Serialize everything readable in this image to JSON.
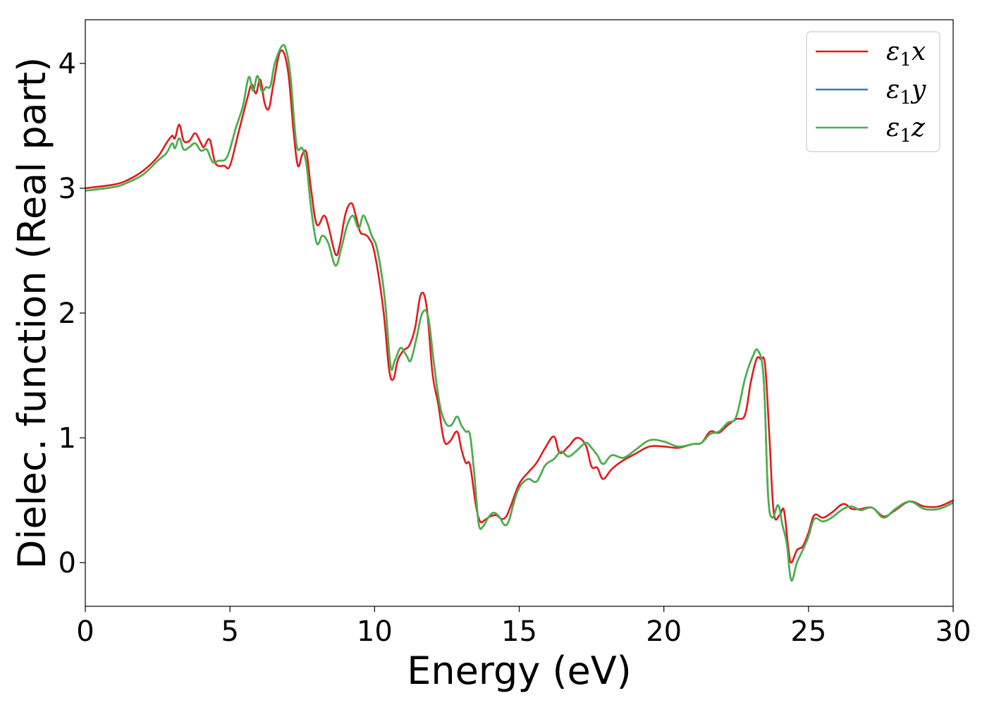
{
  "chart_data": {
    "type": "line",
    "xlabel": "Energy (eV)",
    "ylabel": "Dielec. function (Real part)",
    "xlim": [
      0,
      30
    ],
    "ylim": [
      -0.35,
      4.35
    ],
    "xticks": [
      0,
      5,
      10,
      15,
      20,
      25,
      30
    ],
    "xtick_labels": [
      "0",
      "5",
      "10",
      "15",
      "20",
      "25",
      "30"
    ],
    "yticks": [
      0,
      1,
      2,
      3,
      4
    ],
    "ytick_labels": [
      "0",
      "1",
      "2",
      "3",
      "4"
    ],
    "grid": false,
    "legend_position": "top-right",
    "series": [
      {
        "name": "ε1x",
        "legend_base": "ε",
        "legend_sub": "1",
        "legend_var": "x",
        "color": "#e41a1c",
        "x": [
          0,
          1,
          1.5,
          2,
          2.5,
          2.8,
          3.0,
          3.1,
          3.25,
          3.4,
          3.6,
          3.8,
          4.0,
          4.1,
          4.3,
          4.5,
          4.8,
          5.0,
          5.3,
          5.6,
          5.75,
          5.9,
          6.05,
          6.2,
          6.35,
          6.5,
          6.75,
          7.0,
          7.2,
          7.35,
          7.5,
          7.65,
          7.8,
          8.0,
          8.25,
          8.4,
          8.65,
          8.8,
          9.0,
          9.2,
          9.35,
          9.5,
          9.65,
          9.8,
          10.0,
          10.3,
          10.5,
          10.65,
          10.8,
          11.0,
          11.2,
          11.4,
          11.6,
          11.8,
          12.0,
          12.2,
          12.4,
          12.6,
          12.85,
          13.0,
          13.15,
          13.3,
          13.5,
          13.65,
          13.8,
          14.0,
          14.2,
          14.4,
          14.55,
          14.7,
          15.0,
          15.3,
          15.6,
          15.9,
          16.2,
          16.4,
          16.7,
          17.0,
          17.3,
          17.5,
          17.7,
          17.9,
          18.2,
          18.6,
          19.0,
          19.5,
          20.0,
          20.5,
          21.0,
          21.3,
          21.6,
          21.9,
          22.2,
          22.5,
          22.8,
          23.0,
          23.2,
          23.35,
          23.5,
          23.65,
          23.8,
          24.0,
          24.15,
          24.3,
          24.4,
          24.6,
          24.8,
          25.0,
          25.2,
          25.5,
          25.8,
          26.2,
          26.5,
          26.8,
          27.2,
          27.6,
          28.0,
          28.5,
          29.0,
          29.5,
          30.0
        ],
        "values": [
          3.0,
          3.03,
          3.07,
          3.14,
          3.25,
          3.36,
          3.42,
          3.4,
          3.51,
          3.38,
          3.38,
          3.44,
          3.36,
          3.33,
          3.39,
          3.2,
          3.18,
          3.18,
          3.45,
          3.72,
          3.83,
          3.76,
          3.87,
          3.68,
          3.64,
          3.83,
          4.1,
          3.95,
          3.45,
          3.18,
          3.27,
          3.28,
          3.0,
          2.71,
          2.78,
          2.7,
          2.47,
          2.55,
          2.8,
          2.88,
          2.78,
          2.65,
          2.63,
          2.6,
          2.48,
          2.03,
          1.55,
          1.47,
          1.62,
          1.7,
          1.74,
          1.88,
          2.15,
          2.05,
          1.52,
          1.27,
          0.98,
          0.97,
          1.05,
          0.91,
          0.8,
          0.78,
          0.46,
          0.33,
          0.34,
          0.37,
          0.38,
          0.35,
          0.37,
          0.45,
          0.63,
          0.72,
          0.8,
          0.92,
          1.01,
          0.88,
          0.93,
          1.0,
          0.94,
          0.77,
          0.76,
          0.67,
          0.75,
          0.82,
          0.87,
          0.93,
          0.93,
          0.92,
          0.95,
          0.96,
          1.05,
          1.04,
          1.1,
          1.15,
          1.18,
          1.44,
          1.63,
          1.63,
          1.58,
          1.0,
          0.4,
          0.38,
          0.42,
          0.12,
          0.0,
          0.1,
          0.13,
          0.24,
          0.38,
          0.36,
          0.4,
          0.47,
          0.43,
          0.43,
          0.44,
          0.37,
          0.42,
          0.49,
          0.45,
          0.45,
          0.5
        ]
      },
      {
        "name": "ε1y",
        "legend_base": "ε",
        "legend_sub": "1",
        "legend_var": "y",
        "color": "#377eb8",
        "x": [
          0,
          1,
          1.5,
          2,
          2.5,
          2.8,
          3.0,
          3.1,
          3.25,
          3.4,
          3.6,
          3.8,
          4.0,
          4.2,
          4.4,
          4.6,
          4.9,
          5.2,
          5.45,
          5.65,
          5.8,
          5.95,
          6.1,
          6.25,
          6.4,
          6.55,
          6.8,
          6.95,
          7.1,
          7.3,
          7.5,
          7.65,
          7.8,
          8.0,
          8.2,
          8.4,
          8.65,
          8.85,
          9.05,
          9.25,
          9.45,
          9.6,
          9.75,
          9.9,
          10.1,
          10.35,
          10.55,
          10.7,
          10.9,
          11.1,
          11.25,
          11.45,
          11.65,
          11.85,
          12.05,
          12.25,
          12.45,
          12.65,
          12.85,
          13.0,
          13.15,
          13.3,
          13.45,
          13.6,
          13.75,
          13.9,
          14.1,
          14.3,
          14.5,
          14.65,
          14.8,
          15.0,
          15.3,
          15.6,
          15.9,
          16.2,
          16.45,
          16.7,
          17.0,
          17.3,
          17.5,
          17.7,
          17.9,
          18.2,
          18.6,
          19.0,
          19.5,
          20.0,
          20.5,
          21.0,
          21.3,
          21.6,
          21.9,
          22.2,
          22.5,
          22.8,
          23.05,
          23.25,
          23.45,
          23.6,
          23.75,
          23.95,
          24.1,
          24.25,
          24.4,
          24.6,
          24.8,
          25.0,
          25.2,
          25.5,
          25.8,
          26.2,
          26.5,
          26.8,
          27.2,
          27.6,
          28.0,
          28.5,
          29.0,
          29.5,
          30.0
        ],
        "values": [
          2.98,
          3.01,
          3.05,
          3.11,
          3.22,
          3.28,
          3.36,
          3.32,
          3.4,
          3.31,
          3.33,
          3.36,
          3.3,
          3.31,
          3.21,
          3.22,
          3.25,
          3.48,
          3.66,
          3.89,
          3.78,
          3.9,
          3.78,
          3.81,
          3.82,
          4.0,
          4.14,
          4.1,
          3.88,
          3.35,
          3.32,
          3.18,
          2.85,
          2.56,
          2.62,
          2.56,
          2.38,
          2.52,
          2.7,
          2.78,
          2.68,
          2.78,
          2.72,
          2.62,
          2.5,
          2.12,
          1.58,
          1.62,
          1.72,
          1.66,
          1.62,
          1.8,
          2.0,
          1.97,
          1.6,
          1.27,
          1.12,
          1.1,
          1.17,
          1.1,
          1.05,
          1.02,
          0.7,
          0.31,
          0.29,
          0.35,
          0.4,
          0.37,
          0.3,
          0.34,
          0.47,
          0.6,
          0.67,
          0.65,
          0.78,
          0.83,
          0.89,
          0.85,
          0.9,
          0.96,
          0.92,
          0.86,
          0.79,
          0.86,
          0.84,
          0.9,
          0.98,
          0.97,
          0.93,
          0.95,
          0.96,
          1.03,
          1.05,
          1.12,
          1.17,
          1.47,
          1.64,
          1.7,
          1.47,
          0.55,
          0.36,
          0.46,
          0.3,
          0.15,
          -0.14,
          0.0,
          0.1,
          0.21,
          0.35,
          0.33,
          0.36,
          0.43,
          0.45,
          0.42,
          0.44,
          0.36,
          0.43,
          0.49,
          0.43,
          0.43,
          0.48
        ]
      },
      {
        "name": "ε1z",
        "legend_base": "ε",
        "legend_sub": "1",
        "legend_var": "z",
        "color": "#4daf4a",
        "x": [
          0,
          1,
          1.5,
          2,
          2.5,
          2.8,
          3.0,
          3.1,
          3.25,
          3.4,
          3.6,
          3.8,
          4.0,
          4.2,
          4.4,
          4.6,
          4.9,
          5.2,
          5.45,
          5.65,
          5.8,
          5.95,
          6.1,
          6.25,
          6.4,
          6.55,
          6.8,
          6.95,
          7.1,
          7.3,
          7.5,
          7.65,
          7.8,
          8.0,
          8.2,
          8.4,
          8.65,
          8.85,
          9.05,
          9.25,
          9.45,
          9.6,
          9.75,
          9.9,
          10.1,
          10.35,
          10.55,
          10.7,
          10.9,
          11.1,
          11.25,
          11.45,
          11.65,
          11.85,
          12.05,
          12.25,
          12.45,
          12.65,
          12.85,
          13.0,
          13.15,
          13.3,
          13.45,
          13.6,
          13.75,
          13.9,
          14.1,
          14.3,
          14.5,
          14.65,
          14.8,
          15.0,
          15.3,
          15.6,
          15.9,
          16.2,
          16.45,
          16.7,
          17.0,
          17.3,
          17.5,
          17.7,
          17.9,
          18.2,
          18.6,
          19.0,
          19.5,
          20.0,
          20.5,
          21.0,
          21.3,
          21.6,
          21.9,
          22.2,
          22.5,
          22.8,
          23.05,
          23.25,
          23.45,
          23.6,
          23.75,
          23.95,
          24.1,
          24.25,
          24.4,
          24.6,
          24.8,
          25.0,
          25.2,
          25.5,
          25.8,
          26.2,
          26.5,
          26.8,
          27.2,
          27.6,
          28.0,
          28.5,
          29.0,
          29.5,
          30.0
        ],
        "values": [
          2.98,
          3.01,
          3.05,
          3.11,
          3.22,
          3.28,
          3.36,
          3.32,
          3.4,
          3.31,
          3.33,
          3.36,
          3.3,
          3.31,
          3.21,
          3.22,
          3.25,
          3.48,
          3.66,
          3.89,
          3.78,
          3.9,
          3.78,
          3.81,
          3.82,
          4.0,
          4.14,
          4.1,
          3.88,
          3.35,
          3.32,
          3.18,
          2.85,
          2.56,
          2.62,
          2.56,
          2.38,
          2.52,
          2.7,
          2.78,
          2.68,
          2.78,
          2.72,
          2.62,
          2.5,
          2.12,
          1.58,
          1.62,
          1.72,
          1.66,
          1.62,
          1.8,
          2.0,
          1.97,
          1.6,
          1.27,
          1.12,
          1.1,
          1.17,
          1.1,
          1.05,
          1.02,
          0.7,
          0.31,
          0.29,
          0.35,
          0.4,
          0.37,
          0.3,
          0.34,
          0.47,
          0.6,
          0.67,
          0.65,
          0.78,
          0.83,
          0.89,
          0.85,
          0.9,
          0.96,
          0.92,
          0.86,
          0.79,
          0.86,
          0.84,
          0.9,
          0.98,
          0.97,
          0.93,
          0.95,
          0.96,
          1.03,
          1.05,
          1.12,
          1.17,
          1.47,
          1.64,
          1.7,
          1.47,
          0.55,
          0.36,
          0.46,
          0.3,
          0.15,
          -0.14,
          0.0,
          0.1,
          0.21,
          0.35,
          0.33,
          0.36,
          0.43,
          0.45,
          0.42,
          0.44,
          0.36,
          0.43,
          0.49,
          0.43,
          0.43,
          0.48
        ]
      }
    ]
  }
}
